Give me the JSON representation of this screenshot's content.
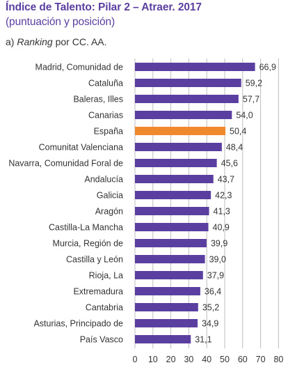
{
  "header": {
    "title": "Índice de Talento: Pilar 2 – Atraer. 2017",
    "subtitle": "(puntuación y posición)",
    "section_prefix": "a) ",
    "section_italic": "Ranking",
    "section_suffix": " por CC. AA."
  },
  "chart_data": {
    "type": "bar",
    "orientation": "horizontal",
    "categories": [
      "Madrid, Comunidad de",
      "Cataluña",
      "Baleras, Illes",
      "Canarias",
      "España",
      "Comunitat Valenciana",
      "Navarra, Comunidad Foral de",
      "Andalucía",
      "Galicia",
      "Aragón",
      "Castilla-La Mancha",
      "Murcia, Región de",
      "Castilla y León",
      "Rioja, La",
      "Extremadura",
      "Cantabria",
      "Asturias, Principado de",
      "País Vasco"
    ],
    "values": [
      66.9,
      59.2,
      57.7,
      54.0,
      50.4,
      48.4,
      45.6,
      43.7,
      42.3,
      41.3,
      40.9,
      39.9,
      39.0,
      37.9,
      36.4,
      35.2,
      34.9,
      31.1
    ],
    "value_labels": [
      "66,9",
      "59,2",
      "57,7",
      "54,0",
      "50,4",
      "48,4",
      "45,6",
      "43,7",
      "42,3",
      "41,3",
      "40,9",
      "39,9",
      "39,0",
      "37,9",
      "36,4",
      "35,2",
      "34,9",
      "31,1"
    ],
    "highlight_category": "España",
    "xlim": [
      0,
      80
    ],
    "xticks": [
      "0",
      "10",
      "20",
      "30",
      "40",
      "50",
      "60",
      "70",
      "80"
    ],
    "grid": "vertical",
    "colors": {
      "bar": "#5b3fa0",
      "highlight": "#f0892b",
      "grid": "#bdbdbd",
      "title": "#5b3fa0"
    }
  }
}
